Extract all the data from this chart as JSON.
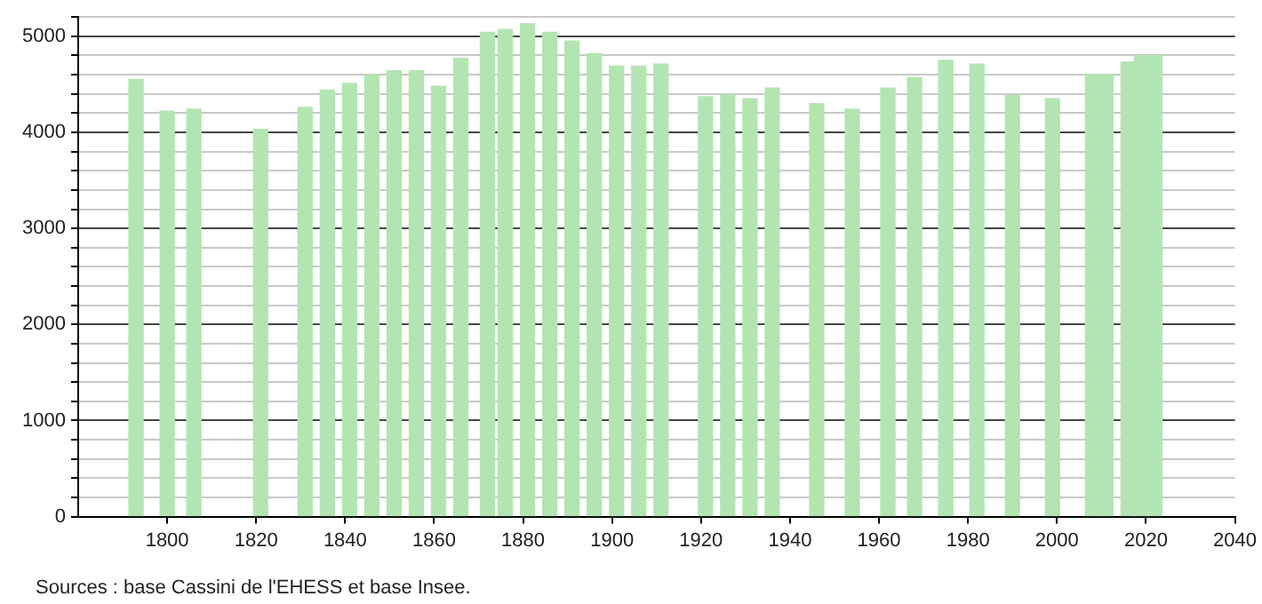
{
  "chart_data": {
    "type": "bar",
    "x": [
      1793,
      1800,
      1806,
      1821,
      1831,
      1836,
      1841,
      1846,
      1851,
      1856,
      1861,
      1866,
      1872,
      1876,
      1881,
      1886,
      1891,
      1896,
      1901,
      1906,
      1911,
      1921,
      1926,
      1931,
      1936,
      1946,
      1954,
      1962,
      1968,
      1975,
      1982,
      1990,
      1999,
      2008,
      2011,
      2016,
      2019,
      2022
    ],
    "values": [
      4550,
      4220,
      4240,
      4030,
      4260,
      4440,
      4510,
      4600,
      4640,
      4640,
      4480,
      4770,
      5040,
      5070,
      5130,
      5040,
      4950,
      4820,
      4690,
      4690,
      4710,
      4370,
      4390,
      4350,
      4460,
      4300,
      4240,
      4460,
      4570,
      4750,
      4710,
      4390,
      4350,
      4600,
      4600,
      4730,
      4800,
      4800
    ],
    "color": "#b3e5b3",
    "xlim": [
      1780,
      2040
    ],
    "xticks": [
      1800,
      1820,
      1840,
      1860,
      1880,
      1900,
      1920,
      1940,
      1960,
      1980,
      2000,
      2020,
      2040
    ],
    "ylim": [
      0,
      5200
    ],
    "yticks": [
      0,
      {
        "value": 200,
        "label": null
      },
      {
        "value": 400,
        "label": null
      },
      {
        "value": 600,
        "label": null
      },
      {
        "value": 800,
        "label": null
      },
      1000,
      {
        "value": 1200,
        "label": null
      },
      {
        "value": 1400,
        "label": null
      },
      {
        "value": 1600,
        "label": null
      },
      {
        "value": 1800,
        "label": null
      },
      2000,
      {
        "value": 2200,
        "label": null
      },
      {
        "value": 2400,
        "label": null
      },
      {
        "value": 2600,
        "label": null
      },
      {
        "value": 2800,
        "label": null
      },
      3000,
      {
        "value": 3200,
        "label": null
      },
      {
        "value": 3400,
        "label": null
      },
      {
        "value": 3600,
        "label": null
      },
      {
        "value": 3800,
        "label": null
      },
      4000,
      {
        "value": 4200,
        "label": null
      },
      {
        "value": 4400,
        "label": null
      },
      {
        "value": 4600,
        "label": null
      },
      {
        "value": 4800,
        "label": null
      },
      5000,
      {
        "value": 5200,
        "label": null
      }
    ],
    "grid": "y",
    "annotations": [
      "Sources : base Cassini de l'EHESS et base Insee."
    ]
  }
}
